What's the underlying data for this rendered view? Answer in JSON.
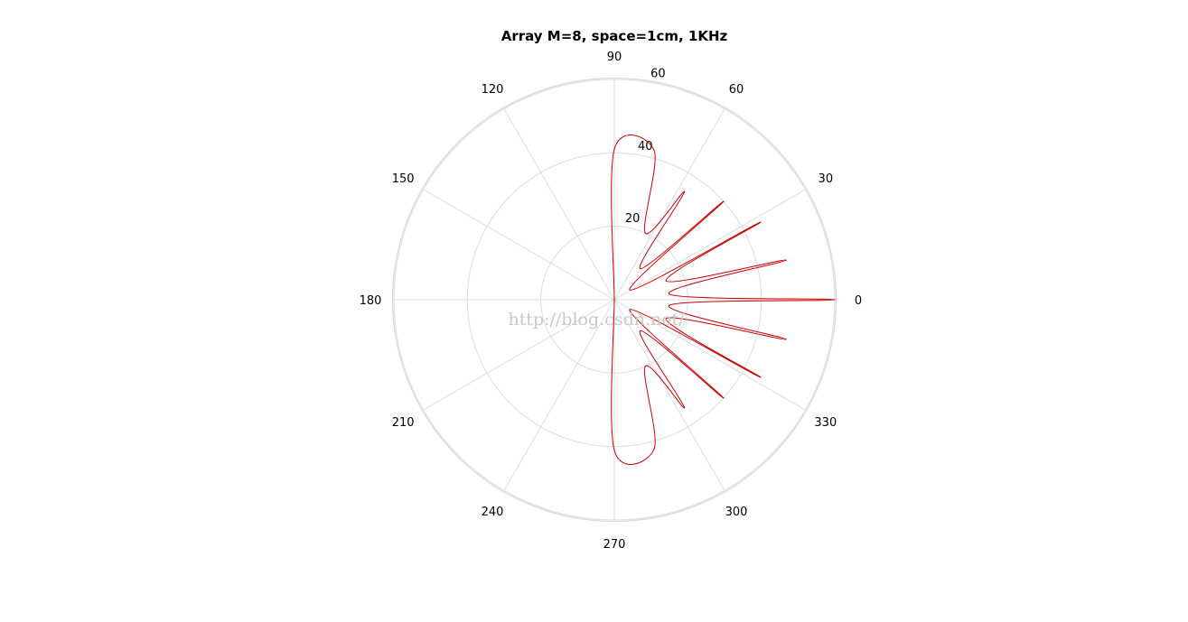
{
  "chart_data": {
    "type": "polar-line",
    "title": "Array M=8, space=1cm, 1KHz",
    "angle_unit": "degrees",
    "angle_tick_labels": [
      "0",
      "30",
      "60",
      "90",
      "120",
      "150",
      "180",
      "210",
      "240",
      "270",
      "300",
      "330"
    ],
    "radial_tick_labels": [
      "20",
      "40",
      "60"
    ],
    "rlim": [
      0,
      60
    ],
    "grid": true,
    "series": [
      {
        "color": "#cc0000",
        "points": [
          {
            "theta": 90,
            "r": 41
          },
          {
            "theta": 75,
            "r": 42
          },
          {
            "theta": 65,
            "r": 20
          },
          {
            "theta": 57,
            "r": 35
          },
          {
            "theta": 50,
            "r": 11
          },
          {
            "theta": 42,
            "r": 40
          },
          {
            "theta": 32,
            "r": 5
          },
          {
            "theta": 28,
            "r": 45
          },
          {
            "theta": 20,
            "r": 15
          },
          {
            "theta": 13,
            "r": 48
          },
          {
            "theta": 6,
            "r": 15
          },
          {
            "theta": 0,
            "r": 60
          },
          {
            "theta": -6,
            "r": 15
          },
          {
            "theta": -13,
            "r": 48
          },
          {
            "theta": -20,
            "r": 15
          },
          {
            "theta": -28,
            "r": 45
          },
          {
            "theta": -32,
            "r": 5
          },
          {
            "theta": -42,
            "r": 40
          },
          {
            "theta": -50,
            "r": 11
          },
          {
            "theta": -57,
            "r": 35
          },
          {
            "theta": -65,
            "r": 20
          },
          {
            "theta": -75,
            "r": 42
          },
          {
            "theta": -90,
            "r": 41
          }
        ]
      }
    ]
  },
  "watermark": "http://blog.csdn.net/"
}
